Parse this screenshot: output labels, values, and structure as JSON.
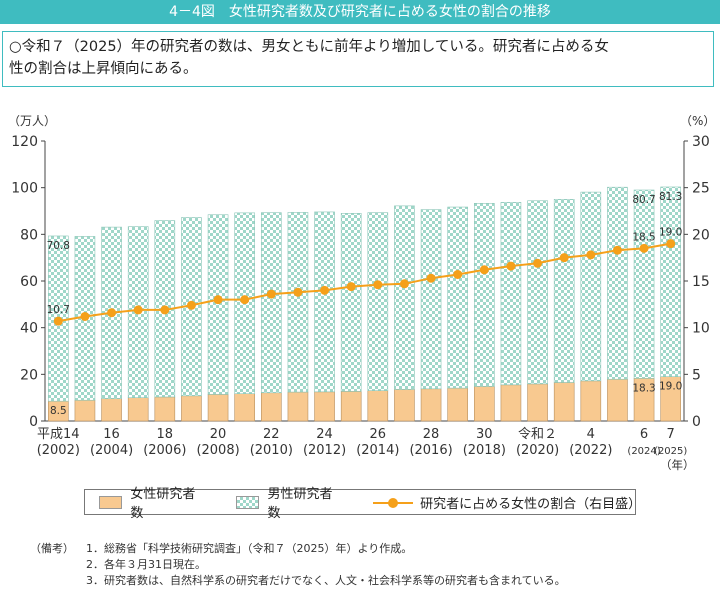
{
  "title": "4－4図　女性研究者数及び研究者に占める女性の割合の推移",
  "summary": {
    "line1": "○令和７（2025）年の研究者の数は、男女ともに前年より増加している。研究者に占める女",
    "line2": "性の割合は上昇傾向にある。"
  },
  "axis": {
    "left_unit": "（万人）",
    "right_unit": "（%）",
    "year_unit": "（年）"
  },
  "legend": {
    "female": "女性研究者数",
    "male": "男性研究者数",
    "ratio": "研究者に占める女性の割合（右目盛）"
  },
  "notes": {
    "head": "（備考）",
    "items": [
      {
        "num": "1．",
        "text": "総務省「科学技術研究調査」（令和７（2025）年）より作成。"
      },
      {
        "num": "2．",
        "text": "各年３月31日現在。"
      },
      {
        "num": "3．",
        "text": "研究者数は、自然科学系の研究者だけでなく、人文・社会科学系等の研究者も含まれている。"
      }
    ]
  },
  "colors": {
    "female": "#f8c990",
    "male": "#9fd7c9",
    "ratio": "#f5a01a",
    "accent": "#3fbcc0"
  },
  "chart_data": {
    "type": "bar",
    "stacked": true,
    "years": [
      "2002",
      "2003",
      "2004",
      "2005",
      "2006",
      "2007",
      "2008",
      "2009",
      "2010",
      "2011",
      "2012",
      "2013",
      "2014",
      "2015",
      "2016",
      "2017",
      "2018",
      "2019",
      "2020",
      "2021",
      "2022",
      "2023",
      "2024",
      "2025"
    ],
    "x_tick_labels": [
      {
        "index": 0,
        "era": "平成14",
        "year": "(2002)"
      },
      {
        "index": 2,
        "era": "16",
        "year": "(2004)"
      },
      {
        "index": 4,
        "era": "18",
        "year": "(2006)"
      },
      {
        "index": 6,
        "era": "20",
        "year": "(2008)"
      },
      {
        "index": 8,
        "era": "22",
        "year": "(2010)"
      },
      {
        "index": 10,
        "era": "24",
        "year": "(2012)"
      },
      {
        "index": 12,
        "era": "26",
        "year": "(2014)"
      },
      {
        "index": 14,
        "era": "28",
        "year": "(2016)"
      },
      {
        "index": 16,
        "era": "30",
        "year": "(2018)"
      },
      {
        "index": 18,
        "era": "令和２",
        "year": "(2020)"
      },
      {
        "index": 20,
        "era": "4",
        "year": "(2022)"
      },
      {
        "index": 22,
        "era": "6",
        "year": "(2024)"
      },
      {
        "index": 23,
        "era": "7",
        "year": "(2025)"
      }
    ],
    "series": [
      {
        "name": "女性研究者数",
        "values": [
          8.5,
          8.9,
          9.6,
          10.0,
          10.3,
          10.8,
          11.4,
          11.7,
          12.1,
          12.4,
          12.5,
          12.7,
          13.0,
          13.5,
          13.8,
          14.1,
          14.8,
          15.5,
          15.9,
          16.5,
          17.2,
          17.9,
          18.3,
          19.0
        ]
      },
      {
        "name": "男性研究者数",
        "values": [
          70.8,
          70.2,
          73.5,
          73.3,
          75.6,
          76.4,
          77.0,
          77.5,
          77.2,
          77.0,
          77.1,
          76.3,
          76.3,
          78.7,
          76.8,
          77.6,
          78.5,
          78.2,
          78.5,
          78.5,
          80.9,
          82.3,
          80.7,
          81.3
        ]
      },
      {
        "name": "研究者に占める女性の割合",
        "axis": "right",
        "values": [
          10.7,
          11.2,
          11.6,
          11.9,
          11.9,
          12.4,
          13.0,
          13.0,
          13.6,
          13.8,
          14.0,
          14.4,
          14.6,
          14.7,
          15.3,
          15.7,
          16.2,
          16.6,
          16.9,
          17.5,
          17.8,
          18.3,
          18.5,
          19.0
        ]
      }
    ],
    "data_labels": [
      {
        "series": 1,
        "index": 0,
        "text": "70.8"
      },
      {
        "series": 2,
        "index": 0,
        "text": "10.7"
      },
      {
        "series": 0,
        "index": 0,
        "text": "8.5"
      },
      {
        "series": 1,
        "index": 22,
        "text": "80.7"
      },
      {
        "series": 1,
        "index": 23,
        "text": "81.3"
      },
      {
        "series": 2,
        "index": 22,
        "text": "18.5"
      },
      {
        "series": 2,
        "index": 23,
        "text": "19.0"
      },
      {
        "series": 0,
        "index": 22,
        "text": "18.3"
      },
      {
        "series": 0,
        "index": 23,
        "text": "19.0"
      }
    ],
    "y_left": {
      "min": 0,
      "max": 120,
      "ticks": [
        0,
        20,
        40,
        60,
        80,
        100,
        120
      ]
    },
    "y_right": {
      "min": 0,
      "max": 30,
      "ticks": [
        0,
        5,
        10,
        15,
        20,
        25,
        30
      ]
    },
    "grid": false,
    "legend_position": "bottom"
  }
}
